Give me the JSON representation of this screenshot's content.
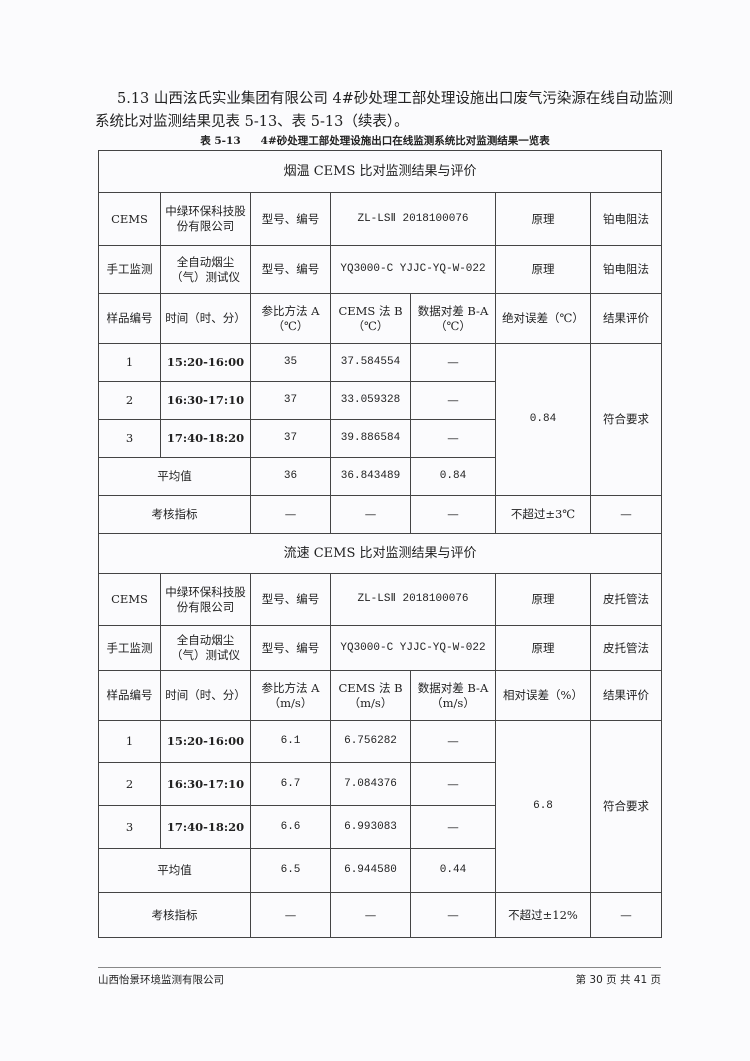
{
  "intro": "5.13 山西泫氏实业集团有限公司 4#砂处理工部处理设施出口废气污染源在线自动监测系统比对监测结果见表 5-13、表 5-13（续表）。",
  "caption": {
    "number": "表 5-13",
    "title": "4#砂处理工部处理设施出口在线监测系统比对监测结果一览表"
  },
  "tables": [
    {
      "section": "烟温 CEMS 比对监测结果与评价",
      "cems": {
        "label": "CEMS",
        "maker": "中绿环保科技股份有限公司",
        "model_label": "型号、编号",
        "model": "ZL-LSⅡ 2018100076",
        "principle_label": "原理",
        "principle": "铂电阻法"
      },
      "manual": {
        "label": "手工监测",
        "maker": "全自动烟尘（气）测试仪",
        "model_label": "型号、编号",
        "model": "YQ3000-C YJJC-YQ-W-022",
        "principle_label": "原理",
        "principle": "铂电阻法"
      },
      "headers": [
        "样品编号",
        "时间（时、分）",
        "参比方法 A（℃）",
        "CEMS 法 B（℃）",
        "数据对差 B-A（℃）",
        "绝对误差（℃）",
        "结果评价"
      ],
      "rows": [
        {
          "no": "1",
          "time": "15:20-16:00",
          "a": "35",
          "b": "37.584554",
          "diff": "—"
        },
        {
          "no": "2",
          "time": "16:30-17:10",
          "a": "37",
          "b": "33.059328",
          "diff": "—"
        },
        {
          "no": "3",
          "time": "17:40-18:20",
          "a": "37",
          "b": "39.886584",
          "diff": "—"
        }
      ],
      "error": "0.84",
      "result": "符合要求",
      "avg": {
        "label": "平均值",
        "a": "36",
        "b": "36.843489",
        "diff": "0.84"
      },
      "criteria": {
        "label": "考核指标",
        "a": "—",
        "b": "—",
        "diff": "—",
        "limit": "不超过±3℃",
        "result": "—"
      }
    },
    {
      "section": "流速 CEMS 比对监测结果与评价",
      "cems": {
        "label": "CEMS",
        "maker": "中绿环保科技股份有限公司",
        "model_label": "型号、编号",
        "model": "ZL-LSⅡ 2018100076",
        "principle_label": "原理",
        "principle": "皮托管法"
      },
      "manual": {
        "label": "手工监测",
        "maker": "全自动烟尘（气）测试仪",
        "model_label": "型号、编号",
        "model": "YQ3000-C YJJC-YQ-W-022",
        "principle_label": "原理",
        "principle": "皮托管法"
      },
      "headers": [
        "样品编号",
        "时间（时、分）",
        "参比方法 A（m/s）",
        "CEMS 法 B（m/s）",
        "数据对差 B-A（m/s）",
        "相对误差（%）",
        "结果评价"
      ],
      "rows": [
        {
          "no": "1",
          "time": "15:20-16:00",
          "a": "6.1",
          "b": "6.756282",
          "diff": "—"
        },
        {
          "no": "2",
          "time": "16:30-17:10",
          "a": "6.7",
          "b": "7.084376",
          "diff": "—"
        },
        {
          "no": "3",
          "time": "17:40-18:20",
          "a": "6.6",
          "b": "6.993083",
          "diff": "—"
        }
      ],
      "error": "6.8",
      "result": "符合要求",
      "avg": {
        "label": "平均值",
        "a": "6.5",
        "b": "6.944580",
        "diff": "0.44"
      },
      "criteria": {
        "label": "考核指标",
        "a": "—",
        "b": "—",
        "diff": "—",
        "limit": "不超过±12%",
        "result": "—"
      }
    }
  ],
  "footer": {
    "company": "山西怡景环境监测有限公司",
    "page": "第 30 页 共 41 页"
  }
}
